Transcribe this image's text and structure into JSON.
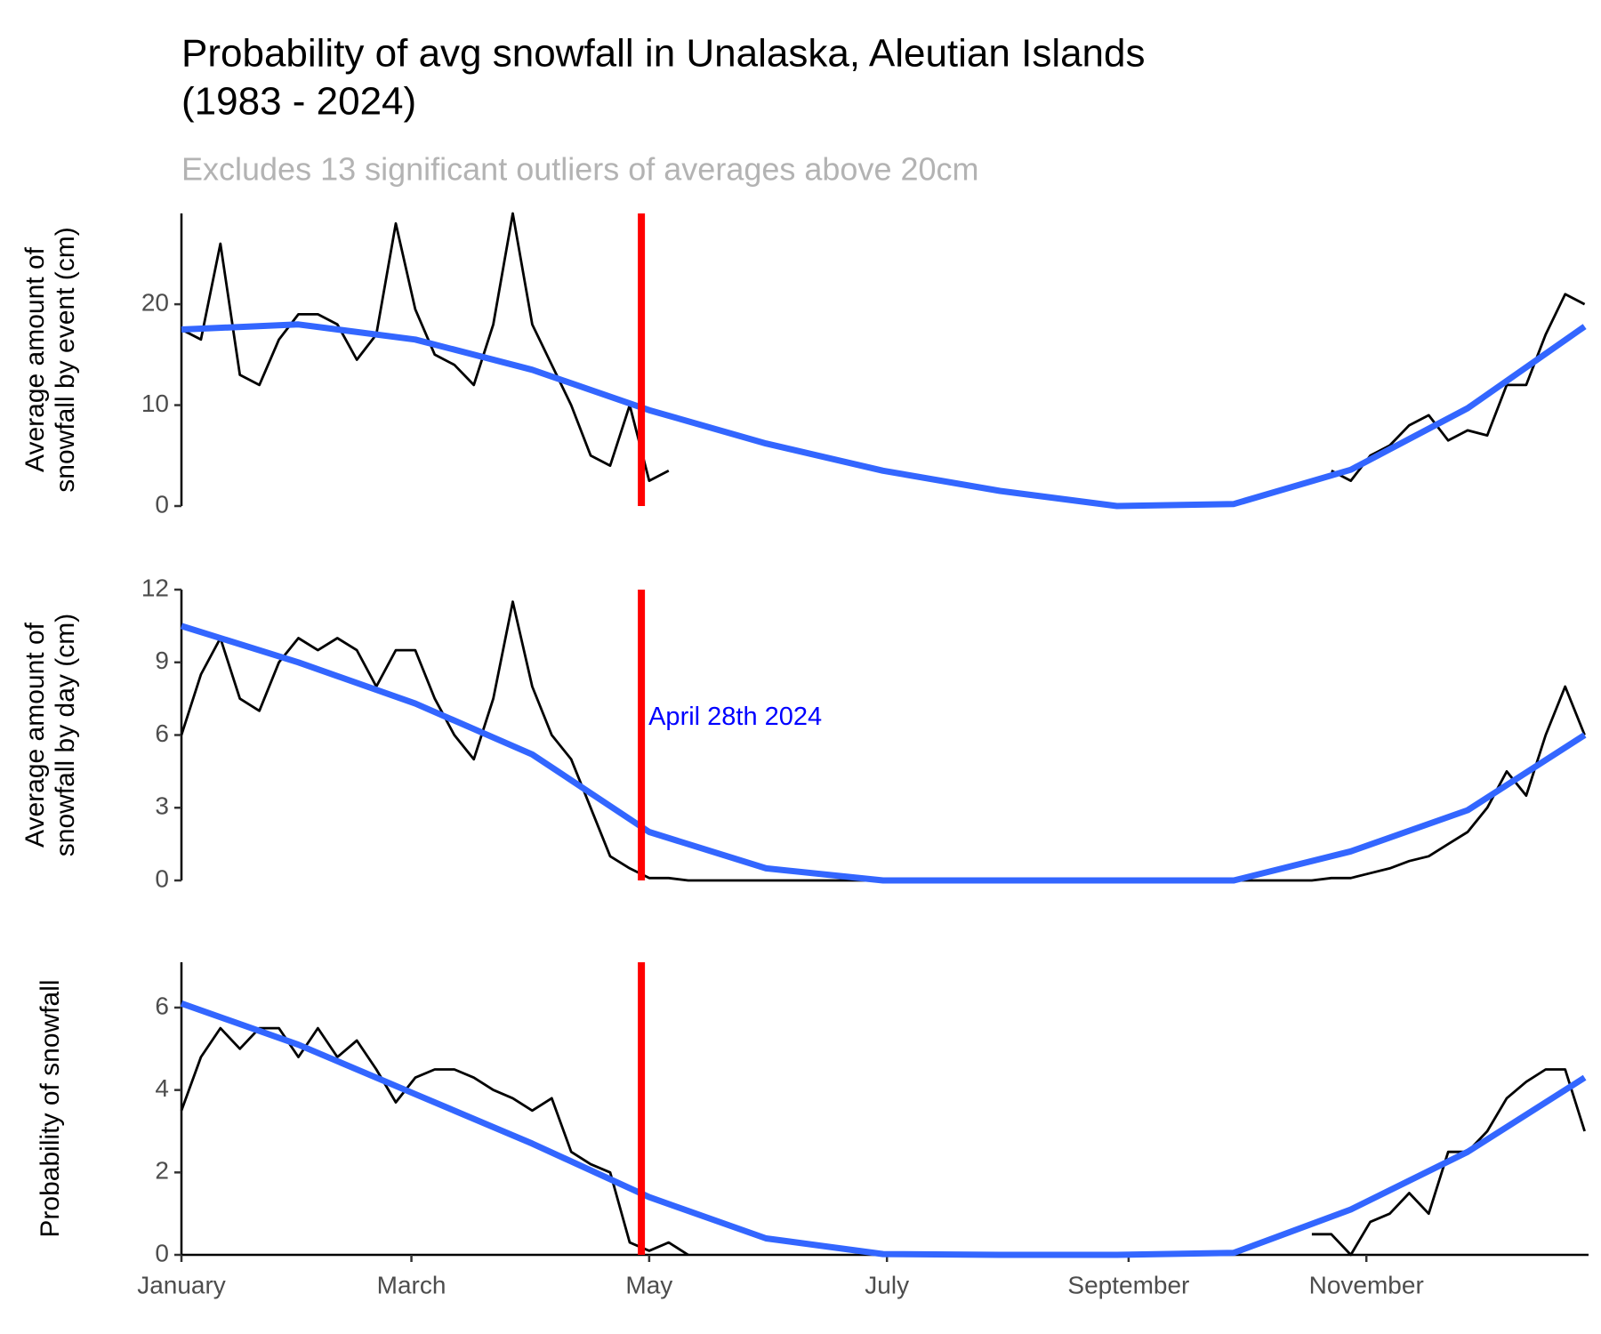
{
  "title": [
    "Probability of avg snowfall in Unalaska, Aleutian Islands",
    "(1983 - 2024)"
  ],
  "subtitle": "Excludes 13 significant outliers of averages above 20cm",
  "chart_data": [
    {
      "type": "line",
      "ylabel": [
        "Average amount of",
        "snowfall by event (cm)"
      ],
      "xlim": [
        1,
        362
      ],
      "ylim": [
        0,
        29
      ],
      "yticks": [
        0,
        10,
        20
      ],
      "vline": {
        "value": 119,
        "color": "#ff0000"
      },
      "series": [
        {
          "color": "#000000",
          "x": [
            1,
            6,
            11,
            16,
            21,
            26,
            31,
            36,
            41,
            46,
            51,
            56,
            61,
            66,
            71,
            76,
            81,
            86,
            91,
            96,
            101,
            106,
            111,
            116,
            121,
            126,
            131,
            136,
            141,
            146,
            151,
            156,
            161,
            166,
            171,
            176,
            181,
            186,
            191,
            196,
            201,
            206,
            211,
            216,
            221,
            226,
            231,
            236,
            241,
            246,
            251,
            256,
            261,
            266,
            271,
            276,
            281,
            286,
            291,
            296,
            301,
            306,
            311,
            316,
            321,
            326,
            331,
            336,
            341,
            346,
            351,
            356,
            361
          ],
          "values": [
            17.5,
            16.5,
            26,
            13,
            12,
            16.5,
            19,
            19,
            18,
            14.5,
            17,
            28,
            19.5,
            15,
            14,
            12,
            18,
            29,
            18,
            14,
            10,
            5,
            4,
            10,
            2.5,
            3.5,
            null,
            null,
            null,
            null,
            null,
            null,
            null,
            null,
            null,
            null,
            null,
            null,
            null,
            null,
            null,
            null,
            null,
            null,
            null,
            null,
            null,
            null,
            null,
            null,
            null,
            null,
            null,
            null,
            null,
            null,
            null,
            null,
            null,
            3.5,
            2.5,
            5,
            6,
            8,
            9,
            6.5,
            7.5,
            7,
            12,
            12,
            17,
            21,
            20
          ]
        },
        {
          "color": "#3366ff",
          "x": [
            1,
            31,
            61,
            91,
            121,
            151,
            181,
            211,
            241,
            271,
            301,
            331,
            361
          ],
          "values": [
            17.5,
            18,
            16.5,
            13.5,
            9.5,
            6.2,
            3.5,
            1.5,
            0,
            0.2,
            3.6,
            9.7,
            17.8
          ]
        }
      ]
    },
    {
      "type": "line",
      "ylabel": [
        "Average amount of",
        "snowfall by day (cm)"
      ],
      "xlim": [
        1,
        362
      ],
      "ylim": [
        0,
        12
      ],
      "yticks": [
        0,
        3,
        6,
        9,
        12
      ],
      "vline": {
        "value": 119,
        "color": "#ff0000"
      },
      "annotation": {
        "text": "April 28th 2024",
        "x": 119,
        "y": 6.7,
        "color": "#0000ff"
      },
      "series": [
        {
          "color": "#000000",
          "x": [
            1,
            6,
            11,
            16,
            21,
            26,
            31,
            36,
            41,
            46,
            51,
            56,
            61,
            66,
            71,
            76,
            81,
            86,
            91,
            96,
            101,
            106,
            111,
            116,
            121,
            126,
            131,
            136,
            141,
            146,
            151,
            156,
            161,
            166,
            171,
            176,
            181,
            186,
            191,
            196,
            201,
            206,
            211,
            216,
            221,
            226,
            231,
            236,
            241,
            246,
            251,
            256,
            261,
            266,
            271,
            276,
            281,
            286,
            291,
            296,
            301,
            306,
            311,
            316,
            321,
            326,
            331,
            336,
            341,
            346,
            351,
            356,
            361
          ],
          "values": [
            6,
            8.5,
            10,
            7.5,
            7,
            9,
            10,
            9.5,
            10,
            9.5,
            8,
            9.5,
            9.5,
            7.5,
            6,
            5,
            7.5,
            11.5,
            8,
            6,
            5,
            3,
            1,
            0.5,
            0.1,
            0.1,
            0,
            0,
            0,
            0,
            0,
            0,
            0,
            0,
            0,
            0,
            0,
            0,
            0,
            0,
            0,
            0,
            0,
            0,
            0,
            0,
            0,
            0,
            0,
            0,
            0,
            0,
            0,
            0,
            0,
            0,
            0,
            0,
            0,
            0.1,
            0.1,
            0.3,
            0.5,
            0.8,
            1,
            1.5,
            2,
            3,
            4.5,
            3.5,
            6,
            8,
            6
          ]
        },
        {
          "color": "#3366ff",
          "x": [
            1,
            31,
            61,
            91,
            121,
            151,
            181,
            211,
            241,
            271,
            301,
            331,
            361
          ],
          "values": [
            10.5,
            9,
            7.3,
            5.2,
            2,
            0.5,
            0,
            0,
            0,
            0,
            1.2,
            2.9,
            6
          ]
        }
      ]
    },
    {
      "type": "line",
      "ylabel": [
        "Probability of snowfall"
      ],
      "xlim": [
        1,
        362
      ],
      "ylim": [
        0,
        7.1
      ],
      "yticks": [
        0,
        2,
        4,
        6
      ],
      "xticks": [
        {
          "value": 1,
          "label": "January"
        },
        {
          "value": 60,
          "label": "March"
        },
        {
          "value": 121,
          "label": "May"
        },
        {
          "value": 182,
          "label": "July"
        },
        {
          "value": 244,
          "label": "September"
        },
        {
          "value": 305,
          "label": "November"
        }
      ],
      "vline": {
        "value": 119,
        "color": "#ff0000"
      },
      "series": [
        {
          "color": "#000000",
          "x": [
            1,
            6,
            11,
            16,
            21,
            26,
            31,
            36,
            41,
            46,
            51,
            56,
            61,
            66,
            71,
            76,
            81,
            86,
            91,
            96,
            101,
            106,
            111,
            116,
            121,
            126,
            131,
            136,
            141,
            146,
            151,
            156,
            161,
            166,
            171,
            176,
            181,
            186,
            191,
            196,
            201,
            206,
            211,
            216,
            221,
            226,
            231,
            236,
            241,
            246,
            251,
            256,
            261,
            266,
            271,
            276,
            281,
            286,
            291,
            296,
            301,
            306,
            311,
            316,
            321,
            326,
            331,
            336,
            341,
            346,
            351,
            356,
            361
          ],
          "values": [
            3.5,
            4.8,
            5.5,
            5,
            5.5,
            5.5,
            4.8,
            5.5,
            4.8,
            5.2,
            4.5,
            3.7,
            4.3,
            4.5,
            4.5,
            4.3,
            4,
            3.8,
            3.5,
            3.8,
            2.5,
            2.2,
            2,
            0.3,
            0.1,
            0.3,
            0,
            null,
            null,
            null,
            null,
            null,
            null,
            null,
            null,
            null,
            null,
            null,
            null,
            null,
            null,
            null,
            null,
            null,
            null,
            null,
            null,
            null,
            null,
            null,
            null,
            null,
            null,
            null,
            null,
            null,
            null,
            null,
            0.5,
            0.5,
            0,
            0.8,
            1,
            1.5,
            1,
            2.5,
            2.5,
            3,
            3.8,
            4.2,
            4.5,
            4.5,
            3
          ]
        },
        {
          "color": "#3366ff",
          "x": [
            1,
            31,
            61,
            91,
            121,
            151,
            181,
            211,
            241,
            271,
            301,
            331,
            361
          ],
          "values": [
            6.1,
            5.1,
            3.9,
            2.7,
            1.4,
            0.4,
            0.02,
            0,
            0,
            0.05,
            1.1,
            2.5,
            4.3
          ]
        }
      ]
    }
  ]
}
